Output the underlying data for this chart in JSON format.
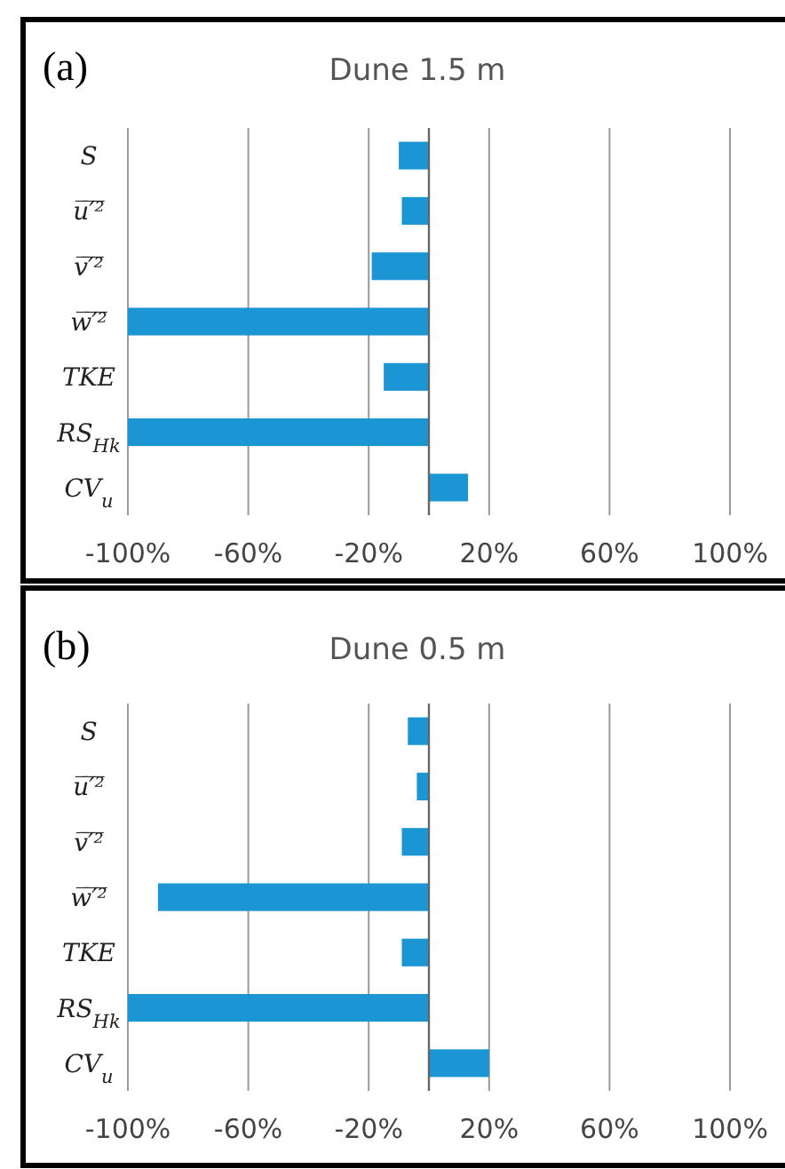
{
  "chart_data": [
    {
      "type": "bar",
      "orientation": "horizontal",
      "title": "Dune 1.5 m",
      "annotations": [
        "(a)"
      ],
      "categories": [
        "S",
        "u̅′̅²̅",
        "v̅′̅²̅",
        "w̅′̅²̅",
        "TKE",
        "RS$_{Hk}$",
        "CV$_{u}$"
      ],
      "values": [
        -10,
        -9,
        -19,
        -100,
        -15,
        -100,
        13
      ],
      "color": "#1b95d3",
      "xlim": [
        -100,
        100
      ],
      "xticks": [
        {
          "value": -100,
          "label": "-100%"
        },
        {
          "value": -60,
          "label": "-60%"
        },
        {
          "value": -20,
          "label": "-20%"
        },
        {
          "value": 20,
          "label": "20%"
        },
        {
          "value": 60,
          "label": "60%"
        },
        {
          "value": 100,
          "label": "100%"
        }
      ],
      "grid": "x"
    },
    {
      "type": "bar",
      "orientation": "horizontal",
      "title": "Dune 0.5 m",
      "annotations": [
        "(b)"
      ],
      "categories": [
        "S",
        "u̅′̅²̅",
        "v̅′̅²̅",
        "w̅′̅²̅",
        "TKE",
        "RS$_{Hk}$",
        "CV$_{u}$"
      ],
      "values": [
        -7,
        -4,
        -9,
        -90,
        -9,
        -100,
        20
      ],
      "color": "#1b95d3",
      "xlim": [
        -100,
        100
      ],
      "xticks": [
        {
          "value": -100,
          "label": "-100%"
        },
        {
          "value": -60,
          "label": "-60%"
        },
        {
          "value": -20,
          "label": "-20%"
        },
        {
          "value": 20,
          "label": "20%"
        },
        {
          "value": 60,
          "label": "60%"
        },
        {
          "value": 100,
          "label": "100%"
        }
      ],
      "grid": "x"
    }
  ]
}
